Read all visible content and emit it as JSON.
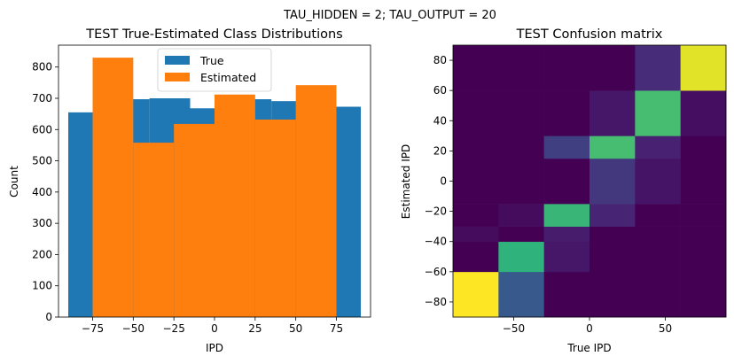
{
  "suptitle": "TAU_HIDDEN = 2; TAU_OUTPUT = 20",
  "chart_data": [
    {
      "type": "bar",
      "subtype": "overlaid-histogram",
      "title": "TEST True-Estimated Class Distributions",
      "xlabel": "IPD",
      "ylabel": "Count",
      "xlim": [
        -96,
        96
      ],
      "ylim": [
        0,
        870
      ],
      "xticks": [
        -75,
        -50,
        -25,
        0,
        25,
        50,
        75
      ],
      "xtick_labels": [
        "−75",
        "−50",
        "−25",
        "0",
        "25",
        "50",
        "75"
      ],
      "yticks": [
        0,
        100,
        200,
        300,
        400,
        500,
        600,
        700,
        800
      ],
      "yticks_labels": [
        "0",
        "100",
        "200",
        "300",
        "400",
        "500",
        "600",
        "700",
        "800"
      ],
      "legend": {
        "position": "top-center",
        "entries": [
          "True",
          "Estimated"
        ]
      },
      "series": [
        {
          "name": "True",
          "color": "#1f77b4",
          "bins": [
            {
              "x0": -90,
              "x1": -65,
              "value": 655
            },
            {
              "x0": -65,
              "x1": -40,
              "value": 697
            },
            {
              "x0": -40,
              "x1": -15,
              "value": 700
            },
            {
              "x0": -15,
              "x1": 10,
              "value": 668
            },
            {
              "x0": 10,
              "x1": 35,
              "value": 697
            },
            {
              "x0": 35,
              "x1": 60,
              "value": 691
            },
            {
              "x0": 60,
              "x1": 90,
              "value": 673
            }
          ]
        },
        {
          "name": "Estimated",
          "color": "#ff7f0e",
          "bins": [
            {
              "x0": -75,
              "x1": -50,
              "value": 830
            },
            {
              "x0": -50,
              "x1": -25,
              "value": 558
            },
            {
              "x0": -25,
              "x1": 0,
              "value": 618
            },
            {
              "x0": 0,
              "x1": 25,
              "value": 712
            },
            {
              "x0": 25,
              "x1": 50,
              "value": 632
            },
            {
              "x0": 50,
              "x1": 75,
              "value": 742
            }
          ]
        }
      ]
    },
    {
      "type": "heatmap",
      "title": "TEST Confusion matrix",
      "xlabel": "True IPD",
      "ylabel": "Estimated IPD",
      "xlim": [
        -90,
        90
      ],
      "ylim": [
        -90,
        90
      ],
      "xticks": [
        -50,
        0,
        50
      ],
      "xtick_labels": [
        "−50",
        "0",
        "50"
      ],
      "yticks": [
        -80,
        -60,
        -40,
        -20,
        0,
        20,
        40,
        60,
        80
      ],
      "ytick_labels": [
        "−80",
        "−60",
        "−40",
        "−20",
        "0",
        "20",
        "40",
        "60",
        "80"
      ],
      "colormap": "viridis",
      "columns": 6,
      "rows_bottom_to_top": [
        [
          1.0,
          0.28,
          0.0,
          0.0,
          0.0,
          0.0
        ],
        [
          0.0,
          0.65,
          0.08,
          0.0,
          0.0,
          0.0
        ],
        [
          0.04,
          0.0,
          0.1,
          0.0,
          0.0,
          0.0
        ],
        [
          0.0,
          0.04,
          0.67,
          0.13,
          0.0,
          0.0
        ],
        [
          0.0,
          0.0,
          0.0,
          0.18,
          0.07,
          0.0
        ],
        [
          0.0,
          0.0,
          0.2,
          0.7,
          0.12,
          0.0
        ],
        [
          0.0,
          0.0,
          0.0,
          0.08,
          0.7,
          0.05
        ],
        [
          0.0,
          0.0,
          0.0,
          0.0,
          0.15,
          0.96
        ]
      ],
      "row_edges": [
        -90,
        -60,
        -40,
        -30,
        -15,
        15,
        30,
        60,
        90
      ]
    }
  ]
}
